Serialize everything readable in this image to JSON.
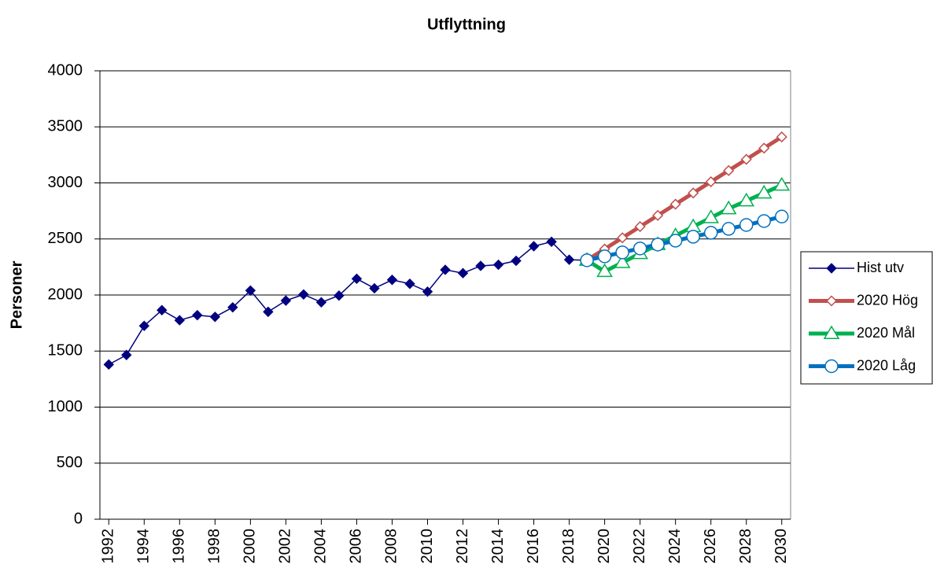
{
  "chart_data": {
    "type": "line",
    "title": "Utflyttning",
    "ylabel": "Personer",
    "x": [
      1992,
      1993,
      1994,
      1995,
      1996,
      1997,
      1998,
      1999,
      2000,
      2001,
      2002,
      2003,
      2004,
      2005,
      2006,
      2007,
      2008,
      2009,
      2010,
      2011,
      2012,
      2013,
      2014,
      2015,
      2016,
      2017,
      2018,
      2019,
      2020,
      2021,
      2022,
      2023,
      2024,
      2025,
      2026,
      2027,
      2028,
      2029,
      2030
    ],
    "xlim": [
      1991.5,
      2030.5
    ],
    "xticks": [
      1992,
      1994,
      1996,
      1998,
      2000,
      2002,
      2004,
      2006,
      2008,
      2010,
      2012,
      2014,
      2016,
      2018,
      2020,
      2022,
      2024,
      2026,
      2028,
      2030
    ],
    "ylim": [
      0,
      4000
    ],
    "yticks": [
      0,
      500,
      1000,
      1500,
      2000,
      2500,
      3000,
      3500,
      4000
    ],
    "grid": true,
    "legend": "right",
    "series": [
      {
        "name": "Hist utv",
        "color": "#000080",
        "marker": "diamond",
        "line_width": 1.5,
        "values": [
          1380,
          1465,
          1725,
          1865,
          1775,
          1820,
          1805,
          1890,
          2040,
          1850,
          1950,
          2005,
          1935,
          1995,
          2145,
          2060,
          2135,
          2100,
          2030,
          2225,
          2195,
          2260,
          2270,
          2305,
          2435,
          2475,
          2315,
          2310,
          null,
          null,
          null,
          null,
          null,
          null,
          null,
          null,
          null,
          null,
          null
        ]
      },
      {
        "name": "2020 Hög",
        "color": "#c0504d",
        "marker": "diamond-open",
        "line_width": 5,
        "values": [
          null,
          null,
          null,
          null,
          null,
          null,
          null,
          null,
          null,
          null,
          null,
          null,
          null,
          null,
          null,
          null,
          null,
          null,
          null,
          null,
          null,
          null,
          null,
          null,
          null,
          null,
          null,
          2310,
          2410,
          2510,
          2610,
          2710,
          2810,
          2910,
          3010,
          3110,
          3210,
          3310,
          3410
        ]
      },
      {
        "name": "2020 Mål",
        "color": "#00b050",
        "marker": "triangle-open",
        "line_width": 5,
        "values": [
          null,
          null,
          null,
          null,
          null,
          null,
          null,
          null,
          null,
          null,
          null,
          null,
          null,
          null,
          null,
          null,
          null,
          null,
          null,
          null,
          null,
          null,
          null,
          null,
          null,
          null,
          null,
          2310,
          2210,
          2290,
          2370,
          2450,
          2530,
          2610,
          2690,
          2770,
          2840,
          2910,
          2980
        ]
      },
      {
        "name": "2020 Låg",
        "color": "#0070c0",
        "marker": "circle-open",
        "line_width": 5,
        "values": [
          null,
          null,
          null,
          null,
          null,
          null,
          null,
          null,
          null,
          null,
          null,
          null,
          null,
          null,
          null,
          null,
          null,
          null,
          null,
          null,
          null,
          null,
          null,
          null,
          null,
          null,
          null,
          2310,
          2345,
          2380,
          2415,
          2450,
          2485,
          2520,
          2555,
          2590,
          2625,
          2660,
          2700
        ]
      }
    ]
  }
}
